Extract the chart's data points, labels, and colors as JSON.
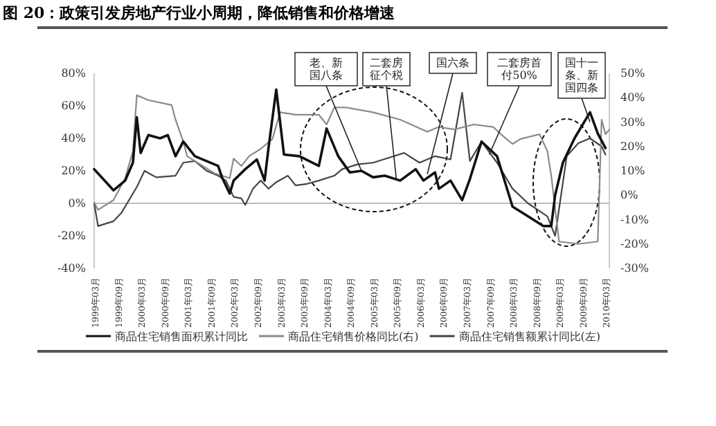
{
  "chart_data": {
    "type": "line",
    "title": "图 20：政策引发房地产行业小周期，降低销售和价格增速",
    "xlim": [
      "1999-03",
      "2010-04"
    ],
    "xticks": [
      {
        "value": "1999-03",
        "label": "1999年03月"
      },
      {
        "value": "1999-09",
        "label": "1999年09月"
      },
      {
        "value": "2000-03",
        "label": "2000年03月"
      },
      {
        "value": "2000-09",
        "label": "2000年09月"
      },
      {
        "value": "2001-03",
        "label": "2001年03月"
      },
      {
        "value": "2001-09",
        "label": "2001年09月"
      },
      {
        "value": "2002-03",
        "label": "2002年03月"
      },
      {
        "value": "2002-09",
        "label": "2002年09月"
      },
      {
        "value": "2003-03",
        "label": "2003年03月"
      },
      {
        "value": "2003-09",
        "label": "2003年09月"
      },
      {
        "value": "2004-03",
        "label": "2004年03月"
      },
      {
        "value": "2004-09",
        "label": "2004年09月"
      },
      {
        "value": "2005-03",
        "label": "2005年03月"
      },
      {
        "value": "2005-09",
        "label": "2005年09月"
      },
      {
        "value": "2006-03",
        "label": "2006年03月"
      },
      {
        "value": "2006-09",
        "label": "2006年09月"
      },
      {
        "value": "2007-03",
        "label": "2007年03月"
      },
      {
        "value": "2007-09",
        "label": "2007年09月"
      },
      {
        "value": "2008-03",
        "label": "2008年03月"
      },
      {
        "value": "2008-09",
        "label": "2008年09月"
      },
      {
        "value": "2009-03",
        "label": "2009年03月"
      },
      {
        "value": "2009-09",
        "label": "2009年09月"
      },
      {
        "value": "2010-03",
        "label": "2010年03月"
      }
    ],
    "ylim": [
      -40,
      80
    ],
    "yticks": [
      {
        "value": -40,
        "label": "-40%"
      },
      {
        "value": -20,
        "label": "-20%"
      },
      {
        "value": 0,
        "label": "0%"
      },
      {
        "value": 20,
        "label": "20%"
      },
      {
        "value": 40,
        "label": "40%"
      },
      {
        "value": 60,
        "label": "60%"
      },
      {
        "value": 80,
        "label": "80%"
      }
    ],
    "y2lim": [
      -30,
      50
    ],
    "y2ticks": [
      {
        "value": -30,
        "label": "-30%"
      },
      {
        "value": -20,
        "label": "-20%"
      },
      {
        "value": -10,
        "label": "-10%"
      },
      {
        "value": 0,
        "label": "0%"
      },
      {
        "value": 10,
        "label": "10%"
      },
      {
        "value": 20,
        "label": "20%"
      },
      {
        "value": 30,
        "label": "30%"
      },
      {
        "value": 40,
        "label": "40%"
      },
      {
        "value": 50,
        "label": "50%"
      }
    ],
    "ref_lines": [
      {
        "axis": "y",
        "value": 0,
        "color": "#bbbbbb"
      }
    ],
    "legend": "bottom",
    "series": [
      {
        "name": "商品住宅销售面积累计同比",
        "color": "#111111",
        "x": [
          "1999-03",
          "1999-08",
          "1999-11",
          "2000-01",
          "2000-02",
          "2000-03",
          "2000-05",
          "2000-08",
          "2000-10",
          "2000-12",
          "2001-02",
          "2001-05",
          "2001-08",
          "2001-11",
          "2001-12",
          "2002-02",
          "2002-03",
          "2002-06",
          "2002-09",
          "2002-11",
          "2002-12",
          "2003-02",
          "2003-04",
          "2003-08",
          "2004-01",
          "2004-03",
          "2004-06",
          "2004-09",
          "2004-12",
          "2005-03",
          "2005-06",
          "2005-10",
          "2006-02",
          "2006-04",
          "2006-07",
          "2006-08",
          "2006-11",
          "2007-02",
          "2007-04",
          "2007-07",
          "2007-11",
          "2008-03",
          "2008-07",
          "2008-11",
          "2009-01",
          "2009-02",
          "2009-04",
          "2009-07",
          "2009-11",
          "2010-01",
          "2010-03"
        ],
        "values": [
          21,
          8,
          14,
          25,
          53,
          31,
          42,
          40,
          42,
          29,
          38,
          29,
          26,
          23,
          16,
          6,
          14,
          21,
          27,
          14,
          34,
          70,
          30,
          29,
          23,
          46,
          29,
          19,
          20,
          16,
          17,
          14,
          21,
          14,
          19,
          9,
          14,
          2,
          15,
          38,
          29,
          -2,
          -8,
          -14,
          -14,
          5,
          25,
          40,
          56,
          43,
          34
        ]
      },
      {
        "name": "商品住宅销售价格同比(右)",
        "color": "#8a8a8a",
        "axis": "y2",
        "x": [
          "1999-03",
          "1999-04",
          "1999-08",
          "1999-11",
          "2000-01",
          "2000-02",
          "2000-05",
          "2000-08",
          "2000-11",
          "2000-12",
          "2001-02",
          "2001-03",
          "2001-06",
          "2001-10",
          "2001-12",
          "2002-02",
          "2002-03",
          "2002-05",
          "2002-07",
          "2002-10",
          "2003-01",
          "2003-03",
          "2003-07",
          "2004-01",
          "2004-03",
          "2004-05",
          "2004-08",
          "2005-03",
          "2005-10",
          "2006-05",
          "2006-08",
          "2006-12",
          "2007-05",
          "2007-10",
          "2007-12",
          "2008-03",
          "2008-05",
          "2008-10",
          "2008-12",
          "2009-01",
          "2009-03",
          "2009-08",
          "2010-01",
          "2010-02",
          "2010-03",
          "2010-04"
        ],
        "values": [
          -3,
          -6,
          -2,
          7,
          18,
          41,
          39,
          38,
          37,
          31,
          22,
          16,
          13,
          9,
          8,
          7,
          15,
          12,
          16,
          19,
          23,
          34,
          33,
          33,
          29,
          36,
          36,
          34,
          31,
          26,
          28,
          27,
          29,
          28,
          25,
          21,
          23,
          25,
          18,
          8,
          -19,
          -20,
          -19,
          31,
          25,
          27
        ]
      },
      {
        "name": "商品住宅销售额累计同比(左)",
        "color": "#444444",
        "x": [
          "1999-03",
          "1999-04",
          "1999-08",
          "1999-10",
          "2000-02",
          "2000-04",
          "2000-07",
          "2000-12",
          "2001-02",
          "2001-05",
          "2001-08",
          "2001-11",
          "2002-01",
          "2002-03",
          "2002-05",
          "2002-06",
          "2002-08",
          "2002-10",
          "2002-12",
          "2003-02",
          "2003-05",
          "2003-07",
          "2003-10",
          "2004-01",
          "2004-05",
          "2004-07",
          "2004-11",
          "2005-03",
          "2005-07",
          "2005-11",
          "2006-03",
          "2006-07",
          "2006-11",
          "2007-02",
          "2007-04",
          "2007-07",
          "2007-11",
          "2008-03",
          "2008-07",
          "2008-12",
          "2009-02",
          "2009-05",
          "2009-08",
          "2009-11",
          "2010-02",
          "2010-03"
        ],
        "values": [
          0,
          -14,
          -11,
          -6,
          10,
          20,
          16,
          17,
          25,
          26,
          20,
          17,
          14,
          4,
          3,
          -1,
          9,
          14,
          9,
          13,
          17,
          11,
          12,
          14,
          17,
          21,
          24,
          25,
          28,
          31,
          25,
          29,
          27,
          68,
          26,
          38,
          25,
          9,
          0,
          -8,
          -20,
          29,
          37,
          40,
          35,
          30
        ]
      }
    ],
    "annotations": [
      {
        "text": "老、新国八条",
        "x": "2004-12",
        "y": 20
      },
      {
        "text": "二套房征个税",
        "x": "2005-09",
        "y": 15
      },
      {
        "text": "国六条",
        "x": "2006-05",
        "y": 18
      },
      {
        "text": "二套房首付50%",
        "x": "2007-09",
        "y": 30
      },
      {
        "text": "国十一条、新国四条",
        "x": "2009-11",
        "y": 50
      }
    ]
  }
}
